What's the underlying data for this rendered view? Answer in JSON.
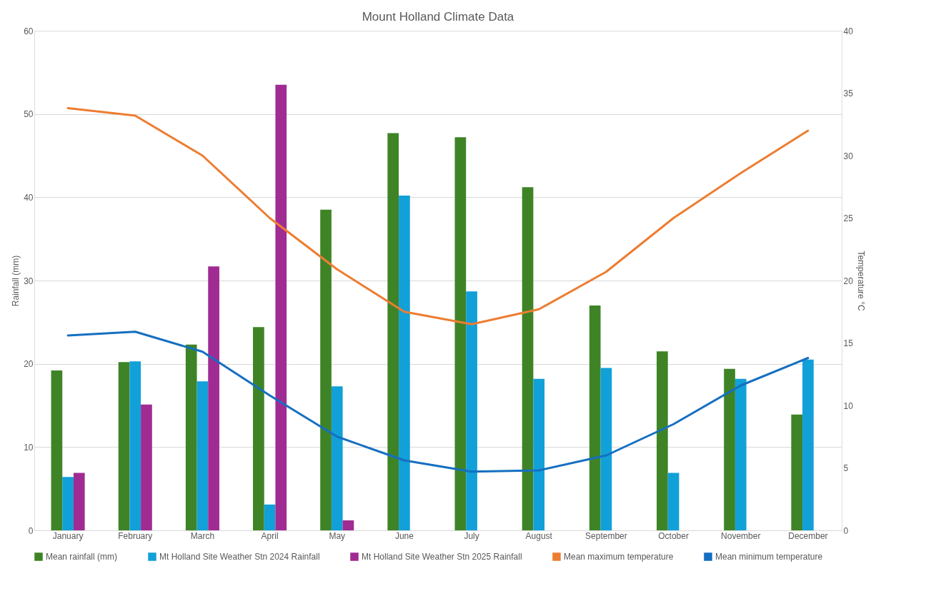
{
  "chart_data": {
    "type": "bar",
    "title": "Mount Holland Climate Data",
    "categories": [
      "January",
      "February",
      "March",
      "April",
      "May",
      "June",
      "July",
      "August",
      "September",
      "October",
      "November",
      "December"
    ],
    "series": [
      {
        "name": "Mean rainfall (mm)",
        "color": "#3e8427",
        "values": [
          19.2,
          20.2,
          22.3,
          24.4,
          38.5,
          47.7,
          47.2,
          41.2,
          27.0,
          21.5,
          19.4,
          13.9
        ]
      },
      {
        "name": "Mt Holland Site Weather Stn 2024 Rainfall",
        "color": "#12a0d8",
        "values": [
          6.4,
          20.3,
          17.9,
          3.1,
          17.3,
          40.2,
          28.7,
          18.2,
          19.5,
          6.9,
          18.2,
          20.5
        ]
      },
      {
        "name": "Mt Holland Site Weather Stn 2025 Rainfall",
        "color": "#a02b93",
        "values": [
          6.9,
          15.1,
          31.7,
          53.5,
          1.2,
          null,
          null,
          null,
          null,
          null,
          null,
          null
        ]
      },
      {
        "name": "Mean maximum temperature",
        "type": "line",
        "axis": "y2",
        "color": "#ed7d31",
        "values": [
          33.8,
          33.2,
          30.0,
          25.0,
          20.9,
          17.5,
          16.5,
          17.7,
          20.7,
          25.0,
          28.6,
          32.0
        ]
      },
      {
        "name": "Mean minimum temperature",
        "type": "line",
        "axis": "y2",
        "color": "#156fc1",
        "values": [
          15.6,
          15.9,
          14.3,
          10.8,
          7.5,
          5.6,
          4.7,
          4.8,
          6.0,
          8.5,
          11.6,
          13.8
        ]
      }
    ],
    "ylabel": "Rainfall (mm)",
    "y2label": "Temperature °C",
    "ylim": [
      0,
      60
    ],
    "yticks": [
      0,
      10,
      20,
      30,
      40,
      50,
      60
    ],
    "y2lim": [
      0,
      40
    ],
    "y2ticks": [
      0,
      5,
      10,
      15,
      20,
      25,
      30,
      35,
      40
    ],
    "grid": "y",
    "legend": "bottom"
  }
}
